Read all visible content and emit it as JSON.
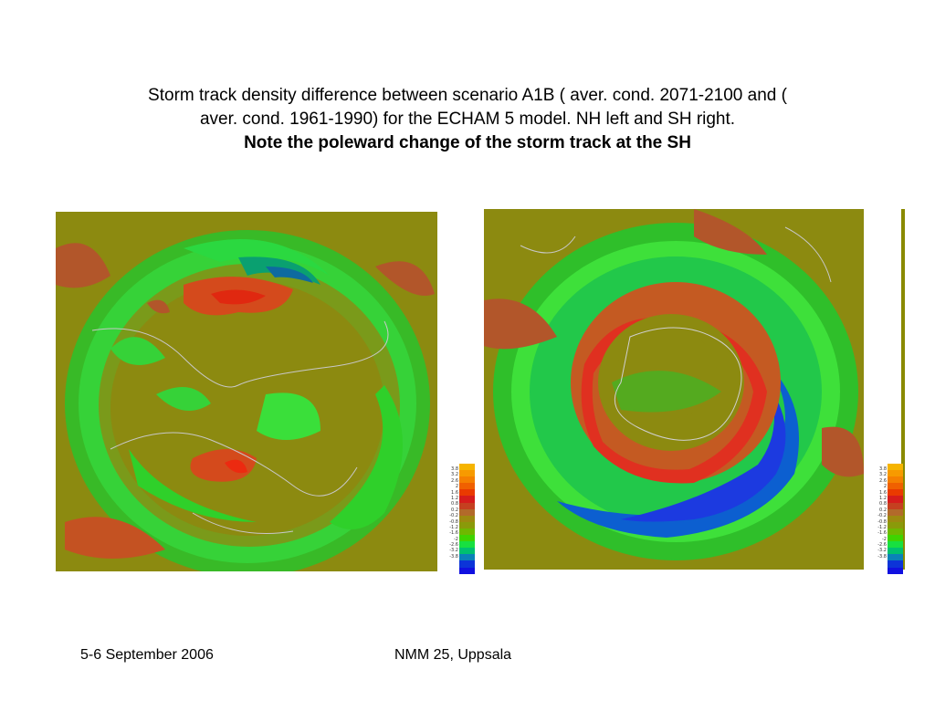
{
  "title": {
    "line1": "Storm track density  difference between scenario A1B ( aver. cond. 2071-2100 and (",
    "line2": "aver. cond. 1961-1990) for the ECHAM 5 model. NH left and SH right.",
    "line3": "Note the poleward change of the storm track at  the SH"
  },
  "colorbar": {
    "labels": [
      "3.8",
      "3.2",
      "2.6",
      "2",
      "1.6",
      "1.2",
      "0.8",
      "0.2",
      "-0.2",
      "-0.8",
      "-1.2",
      "-1.6",
      "-2",
      "-2.6",
      "-3.2",
      "-3.8"
    ],
    "colors": [
      "#f6b400",
      "#f79a00",
      "#f58000",
      "#f06000",
      "#ea3a00",
      "#d61c1c",
      "#c54020",
      "#b26a2a",
      "#9d8a10",
      "#8a9a0a",
      "#6fb800",
      "#3fd400",
      "#18e040",
      "#00c070",
      "#0a82b8",
      "#0c34d8",
      "#1010e0"
    ]
  },
  "footer": {
    "date": "5-6 September 2006",
    "event": "NMM 25, Uppsala"
  }
}
